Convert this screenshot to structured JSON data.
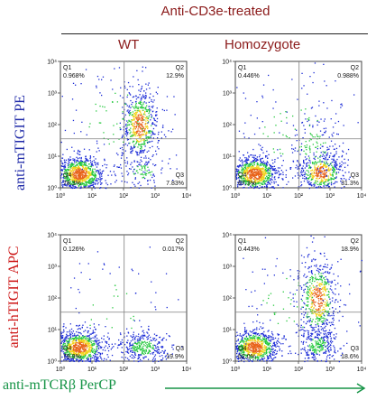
{
  "chart_data": {
    "type": "scatter",
    "title": "Anti-CD3e-treated",
    "columns": [
      "WT",
      "Homozygote"
    ],
    "row_labels": [
      "anti-mTIGIT PE",
      "anti-hTIGIT APC"
    ],
    "xlabel": "anti-mTCRβ PerCP",
    "axis_scale": "log",
    "axis_range": [
      1,
      10000
    ],
    "tick_labels": [
      "10⁰",
      "10¹",
      "10²",
      "10³",
      "10⁴"
    ],
    "panels": [
      {
        "row": "anti-mTIGIT PE",
        "column": "WT",
        "quadrants": {
          "Q1": {
            "label": "Q1",
            "value": "0.968%"
          },
          "Q2": {
            "label": "Q2",
            "value": "12.9%"
          },
          "Q3": {
            "label": "Q3",
            "value": "7.83%"
          },
          "Q4": {
            "label": "Q4",
            "value": "78.3%"
          }
        }
      },
      {
        "row": "anti-mTIGIT PE",
        "column": "Homozygote",
        "quadrants": {
          "Q1": {
            "label": "Q1",
            "value": "0.446%"
          },
          "Q2": {
            "label": "Q2",
            "value": "0.988%"
          },
          "Q3": {
            "label": "Q3",
            "value": "31.3%"
          },
          "Q4": {
            "label": "Q4",
            "value": "67.3%"
          }
        }
      },
      {
        "row": "anti-hTIGIT APC",
        "column": "WT",
        "quadrants": {
          "Q1": {
            "label": "Q1",
            "value": "0.126%"
          },
          "Q2": {
            "label": "Q2",
            "value": "0.017%"
          },
          "Q3": {
            "label": "Q3",
            "value": "19.9%"
          },
          "Q4": {
            "label": "Q4",
            "value": "79.9%"
          }
        }
      },
      {
        "row": "anti-hTIGIT APC",
        "column": "Homozygote",
        "quadrants": {
          "Q1": {
            "label": "Q1",
            "value": "0.443%"
          },
          "Q2": {
            "label": "Q2",
            "value": "18.9%"
          },
          "Q3": {
            "label": "Q3",
            "value": "18.6%"
          },
          "Q4": {
            "label": "Q4",
            "value": "62.0%"
          }
        }
      }
    ],
    "colors": {
      "title": "#8b1a1a",
      "row_pe": "#1f2aa8",
      "row_apc": "#cc1111",
      "x_title": "#179447",
      "dots_low": "#1b2bd6",
      "dots_mid": "#27c93f",
      "dots_high": "#f2d21a",
      "dots_peak": "#e8641b"
    }
  }
}
